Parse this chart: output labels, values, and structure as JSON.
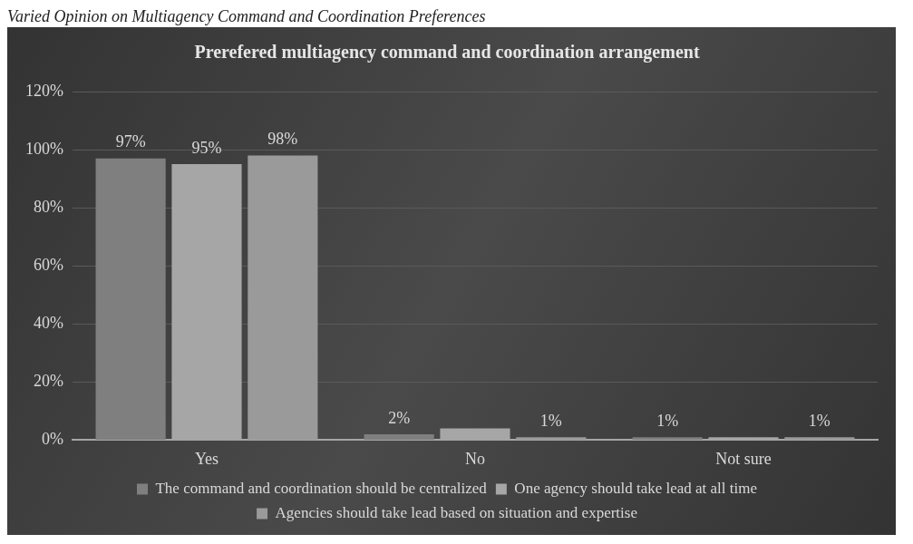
{
  "chart_data": {
    "type": "bar",
    "title": "Prerefered multiagency command and coordination arrangement",
    "annotations": [
      "Varied Opinion on Multiagency Command and Coordination Preferences"
    ],
    "categories": [
      "Yes",
      "No",
      "Not sure"
    ],
    "series": [
      {
        "name": "The command and coordination should be centralized",
        "color": "#7f7f7f",
        "values": [
          97,
          2,
          1
        ],
        "value_labels": [
          "97%",
          "2%",
          "1%"
        ]
      },
      {
        "name": "One agency should take lead at all time",
        "color": "#a6a6a6",
        "values": [
          95,
          4,
          1
        ],
        "value_labels": [
          "95%",
          null,
          null
        ]
      },
      {
        "name": "Agencies should take lead based on situation and expertise",
        "color": "#9a9a9a",
        "values": [
          98,
          1,
          1
        ],
        "value_labels": [
          "98%",
          "1%",
          "1%"
        ]
      }
    ],
    "ylim": [
      0,
      120
    ],
    "yticks": [
      {
        "value": 0,
        "label": "0%"
      },
      {
        "value": 20,
        "label": "20%"
      },
      {
        "value": 40,
        "label": "40%"
      },
      {
        "value": 60,
        "label": "60%"
      },
      {
        "value": 80,
        "label": "80%"
      },
      {
        "value": 100,
        "label": "100%"
      },
      {
        "value": 120,
        "label": "120%"
      }
    ],
    "grid": "y",
    "legend": "bottom"
  }
}
